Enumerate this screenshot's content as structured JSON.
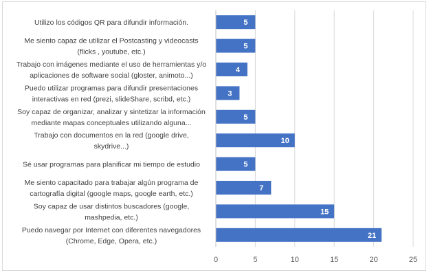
{
  "chart_data": {
    "type": "bar",
    "orientation": "horizontal",
    "title": "",
    "xlabel": "",
    "ylabel": "",
    "xlim": [
      0,
      25
    ],
    "xticks": [
      0,
      5,
      10,
      15,
      20,
      25
    ],
    "grid": true,
    "bar_color": "#4472c4",
    "categories": [
      [
        "Utilizo los códigos QR para difundir información."
      ],
      [
        "Me siento capaz de utilizar el Postcasting y videocasts",
        "(flicks , youtube, etc.)"
      ],
      [
        "Trabajo con imágenes mediante el uso de herramientas y/o",
        "aplicaciones de software social (gloster, animoto...)"
      ],
      [
        "Puedo utilizar programas para difundir presentaciones",
        "interactivas en red (prezi, slideShare, scribd, etc.)"
      ],
      [
        "Soy capaz de organizar, analizar y sintetizar la información",
        "mediante mapas conceptuales utilizando alguna..."
      ],
      [
        "Trabajo con documentos en la red (google drive,",
        "skydrive...)"
      ],
      [
        "Sé usar programas para planificar mi tiempo de estudio"
      ],
      [
        "Me siento capacitado para trabajar algún programa de",
        "cartografía digital (google maps, google earth, etc.)"
      ],
      [
        "Soy capaz de usar distintos buscadores (google,",
        "mashpedia, etc.)"
      ],
      [
        "Puedo navegar por Internet con diferentes navegadores",
        "(Chrome, Edge, Opera, etc.)"
      ]
    ],
    "values": [
      5,
      5,
      4,
      3,
      5,
      10,
      5,
      7,
      15,
      21
    ]
  }
}
